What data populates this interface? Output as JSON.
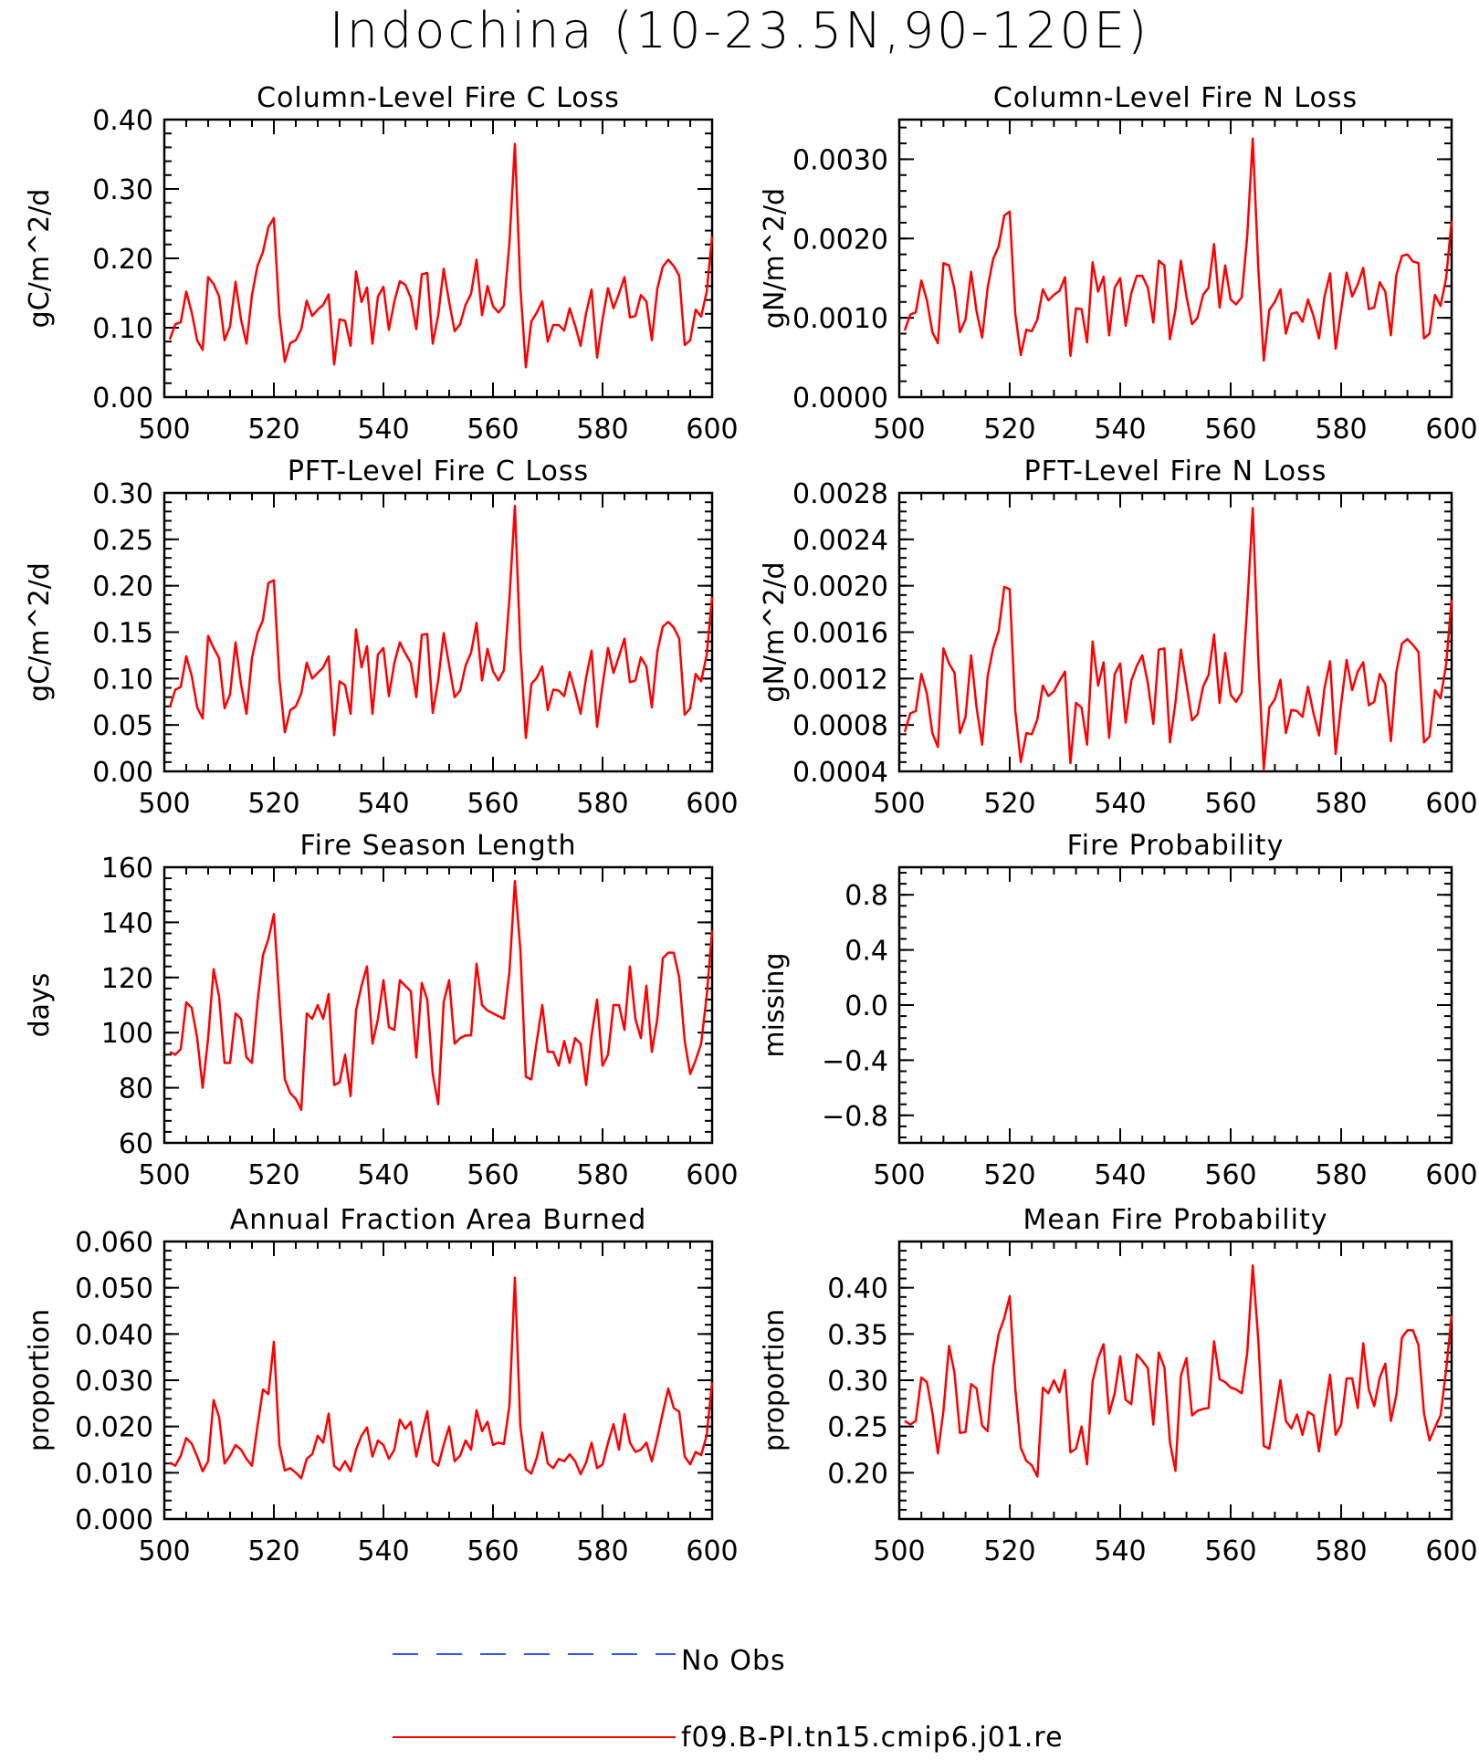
{
  "page": {
    "title": "Indochina (10-23.5N,90-120E)"
  },
  "legend": {
    "items": [
      {
        "label": "No Obs",
        "color": "#3355ff",
        "dash": true
      },
      {
        "label": "f09.B-PI.tn15.cmip6.j01.re",
        "color": "#ff0000",
        "dash": false
      }
    ]
  },
  "chart_data": [
    {
      "type": "line",
      "title": "Column-Level Fire C Loss",
      "ylabel": "gC/m^2/d",
      "xlim": [
        500,
        600
      ],
      "ylim": [
        0,
        0.4
      ],
      "xticks": [
        "500",
        "520",
        "540",
        "560",
        "580",
        "600"
      ],
      "yticks": [
        "0.00",
        "0.10",
        "0.20",
        "0.30",
        "0.40"
      ],
      "series": [
        {
          "name": "f09.B-PI.tn15.cmip6.j01.re",
          "color": "#ff0000",
          "x0": 501,
          "values": [
            0.083,
            0.105,
            0.108,
            0.152,
            0.122,
            0.082,
            0.068,
            0.173,
            0.163,
            0.145,
            0.082,
            0.102,
            0.166,
            0.112,
            0.077,
            0.147,
            0.189,
            0.209,
            0.245,
            0.258,
            0.118,
            0.051,
            0.078,
            0.082,
            0.098,
            0.139,
            0.117,
            0.126,
            0.133,
            0.148,
            0.047,
            0.112,
            0.11,
            0.074,
            0.181,
            0.137,
            0.158,
            0.077,
            0.145,
            0.159,
            0.097,
            0.138,
            0.167,
            0.162,
            0.143,
            0.098,
            0.177,
            0.179,
            0.077,
            0.118,
            0.185,
            0.137,
            0.095,
            0.105,
            0.133,
            0.149,
            0.198,
            0.118,
            0.16,
            0.131,
            0.122,
            0.132,
            0.222,
            0.365,
            0.158,
            0.043,
            0.109,
            0.122,
            0.138,
            0.08,
            0.104,
            0.104,
            0.096,
            0.128,
            0.103,
            0.074,
            0.121,
            0.155,
            0.057,
            0.112,
            0.157,
            0.128,
            0.149,
            0.173,
            0.115,
            0.117,
            0.147,
            0.138,
            0.082,
            0.156,
            0.188,
            0.198,
            0.189,
            0.175,
            0.075,
            0.082,
            0.126,
            0.116,
            0.151,
            0.231
          ]
        }
      ]
    },
    {
      "type": "line",
      "title": "Column-Level Fire N Loss",
      "ylabel": "gN/m^2/d",
      "xlim": [
        500,
        600
      ],
      "ylim": [
        0,
        0.0035
      ],
      "xticks": [
        "500",
        "520",
        "540",
        "560",
        "580",
        "600"
      ],
      "yticks": [
        "0.0000",
        "0.0010",
        "0.0020",
        "0.0030"
      ],
      "series": [
        {
          "name": "f09.B-PI.tn15.cmip6.j01.re",
          "color": "#ff0000",
          "x0": 501,
          "values": [
            0.00084,
            0.00104,
            0.00107,
            0.00147,
            0.00122,
            0.00082,
            0.00068,
            0.00169,
            0.00166,
            0.00136,
            0.00082,
            0.00098,
            0.00158,
            0.00108,
            0.00075,
            0.00138,
            0.00174,
            0.0019,
            0.00229,
            0.00234,
            0.00106,
            0.00053,
            0.00085,
            0.00083,
            0.00098,
            0.00136,
            0.00122,
            0.00129,
            0.00134,
            0.00151,
            0.00052,
            0.00112,
            0.00111,
            0.00069,
            0.0017,
            0.00133,
            0.00152,
            0.00078,
            0.00138,
            0.0015,
            0.0009,
            0.00131,
            0.00153,
            0.00153,
            0.00138,
            0.00094,
            0.00172,
            0.00166,
            0.00073,
            0.0011,
            0.00172,
            0.00127,
            0.00092,
            0.001,
            0.00129,
            0.00138,
            0.00193,
            0.00113,
            0.00166,
            0.00123,
            0.00117,
            0.00126,
            0.00204,
            0.00326,
            0.00162,
            0.00046,
            0.0011,
            0.0012,
            0.00136,
            0.0008,
            0.00105,
            0.00107,
            0.00095,
            0.00123,
            0.00102,
            0.00074,
            0.00127,
            0.00156,
            0.00061,
            0.0011,
            0.00157,
            0.00127,
            0.00142,
            0.00163,
            0.00111,
            0.00113,
            0.00145,
            0.00133,
            0.00078,
            0.00154,
            0.00178,
            0.0018,
            0.00171,
            0.00169,
            0.00074,
            0.0008,
            0.00129,
            0.00115,
            0.0015,
            0.00222
          ]
        }
      ]
    },
    {
      "type": "line",
      "title": "PFT-Level Fire C Loss",
      "ylabel": "gC/m^2/d",
      "xlim": [
        500,
        600
      ],
      "ylim": [
        0,
        0.3
      ],
      "xticks": [
        "500",
        "520",
        "540",
        "560",
        "580",
        "600"
      ],
      "yticks": [
        "0.00",
        "0.05",
        "0.10",
        "0.15",
        "0.20",
        "0.25",
        "0.30"
      ],
      "series": [
        {
          "name": "f09.B-PI.tn15.cmip6.j01.re",
          "color": "#ff0000",
          "x0": 501,
          "values": [
            0.069,
            0.088,
            0.091,
            0.124,
            0.103,
            0.069,
            0.057,
            0.146,
            0.133,
            0.122,
            0.068,
            0.083,
            0.139,
            0.094,
            0.062,
            0.122,
            0.149,
            0.163,
            0.203,
            0.206,
            0.1,
            0.042,
            0.066,
            0.07,
            0.084,
            0.117,
            0.1,
            0.106,
            0.112,
            0.124,
            0.039,
            0.097,
            0.093,
            0.062,
            0.153,
            0.112,
            0.135,
            0.062,
            0.126,
            0.133,
            0.081,
            0.117,
            0.139,
            0.127,
            0.117,
            0.08,
            0.147,
            0.148,
            0.063,
            0.098,
            0.149,
            0.114,
            0.08,
            0.087,
            0.114,
            0.128,
            0.16,
            0.098,
            0.132,
            0.108,
            0.098,
            0.109,
            0.186,
            0.286,
            0.132,
            0.036,
            0.094,
            0.101,
            0.113,
            0.066,
            0.088,
            0.087,
            0.081,
            0.107,
            0.086,
            0.062,
            0.101,
            0.13,
            0.048,
            0.093,
            0.133,
            0.106,
            0.124,
            0.143,
            0.096,
            0.098,
            0.123,
            0.113,
            0.069,
            0.129,
            0.156,
            0.161,
            0.155,
            0.143,
            0.061,
            0.068,
            0.105,
            0.097,
            0.125,
            0.188
          ]
        }
      ]
    },
    {
      "type": "line",
      "title": "PFT-Level Fire N Loss",
      "ylabel": "gN/m^2/d",
      "xlim": [
        500,
        600
      ],
      "ylim": [
        0.0004,
        0.0028
      ],
      "xticks": [
        "500",
        "520",
        "540",
        "560",
        "580",
        "600"
      ],
      "yticks": [
        "0.0004",
        "0.0008",
        "0.0012",
        "0.0016",
        "0.0020",
        "0.0024",
        "0.0028"
      ],
      "series": [
        {
          "name": "f09.B-PI.tn15.cmip6.j01.re",
          "color": "#ff0000",
          "x0": 501,
          "values": [
            0.00074,
            0.0009,
            0.00092,
            0.00124,
            0.00107,
            0.00073,
            0.00061,
            0.00146,
            0.00133,
            0.00125,
            0.00073,
            0.00087,
            0.0014,
            0.00095,
            0.00063,
            0.00122,
            0.00146,
            0.00161,
            0.00199,
            0.00197,
            0.00093,
            0.00048,
            0.00073,
            0.00072,
            0.00085,
            0.00114,
            0.00105,
            0.00109,
            0.00118,
            0.00126,
            0.00047,
            0.00099,
            0.00095,
            0.00063,
            0.00152,
            0.00114,
            0.00134,
            0.00069,
            0.00124,
            0.00133,
            0.00082,
            0.00118,
            0.00131,
            0.0014,
            0.00116,
            0.00081,
            0.00145,
            0.00146,
            0.00065,
            0.00099,
            0.00145,
            0.00115,
            0.00084,
            0.00089,
            0.00113,
            0.00123,
            0.00158,
            0.00099,
            0.00142,
            0.00106,
            0.001,
            0.00108,
            0.00183,
            0.00267,
            0.00136,
            0.00042,
            0.00095,
            0.00102,
            0.00119,
            0.00073,
            0.00093,
            0.00092,
            0.00087,
            0.00113,
            0.0009,
            0.00071,
            0.00112,
            0.00135,
            0.00055,
            0.00098,
            0.00136,
            0.0011,
            0.00126,
            0.00134,
            0.00097,
            0.001,
            0.00124,
            0.00115,
            0.00066,
            0.00126,
            0.0015,
            0.00154,
            0.00149,
            0.00143,
            0.00065,
            0.0007,
            0.0011,
            0.00103,
            0.00132,
            0.00188
          ]
        }
      ]
    },
    {
      "type": "line",
      "title": "Fire Season Length",
      "ylabel": "days",
      "xlim": [
        500,
        600
      ],
      "ylim": [
        60,
        160
      ],
      "xticks": [
        "500",
        "520",
        "540",
        "560",
        "580",
        "600"
      ],
      "yticks": [
        "60",
        "80",
        "100",
        "120",
        "140",
        "160"
      ],
      "series": [
        {
          "name": "f09.B-PI.tn15.cmip6.j01.re",
          "color": "#ff0000",
          "x0": 501,
          "values": [
            93,
            92,
            94,
            111,
            109,
            98,
            80,
            98,
            123,
            113,
            89,
            89,
            107,
            105,
            91,
            89,
            111,
            128,
            134,
            143,
            112,
            83,
            78,
            76,
            72,
            107,
            105,
            110,
            105,
            114,
            81,
            82,
            92,
            77,
            108,
            117,
            124,
            96,
            105,
            119,
            102,
            101,
            119,
            117,
            115,
            91,
            118,
            112,
            85,
            74,
            111,
            119,
            96,
            98,
            99,
            99,
            125,
            110,
            108,
            107,
            106,
            105,
            122,
            155,
            130,
            84,
            83,
            97,
            110,
            93,
            93,
            88,
            97,
            89,
            98,
            96,
            81,
            99,
            112,
            88,
            92,
            110,
            110,
            101,
            124,
            105,
            98,
            117,
            93,
            105,
            127,
            129,
            129,
            120,
            97,
            85,
            90,
            96,
            113,
            137
          ]
        }
      ]
    },
    {
      "type": "line",
      "title": "Fire Probability",
      "ylabel": "missing",
      "xlim": [
        500,
        600
      ],
      "ylim": [
        -1.0,
        1.0
      ],
      "xticks": [
        "500",
        "520",
        "540",
        "560",
        "580",
        "600"
      ],
      "yticks": [
        "-0.8",
        "-0.4",
        "0.0",
        "0.4",
        "0.8"
      ],
      "series": []
    },
    {
      "type": "line",
      "title": "Annual Fraction Area Burned",
      "ylabel": "proportion",
      "xlim": [
        500,
        600
      ],
      "ylim": [
        0,
        0.06
      ],
      "xticks": [
        "500",
        "520",
        "540",
        "560",
        "580",
        "600"
      ],
      "yticks": [
        "0.000",
        "0.010",
        "0.020",
        "0.030",
        "0.040",
        "0.050",
        "0.060"
      ],
      "series": [
        {
          "name": "f09.B-PI.tn15.cmip6.j01.re",
          "color": "#ff0000",
          "x0": 501,
          "values": [
            0.0122,
            0.0115,
            0.0137,
            0.0175,
            0.0163,
            0.0135,
            0.0103,
            0.0125,
            0.0257,
            0.022,
            0.012,
            0.0137,
            0.016,
            0.015,
            0.013,
            0.0115,
            0.02,
            0.028,
            0.027,
            0.0383,
            0.016,
            0.0105,
            0.011,
            0.01,
            0.0088,
            0.013,
            0.014,
            0.018,
            0.0165,
            0.0228,
            0.0115,
            0.0105,
            0.0125,
            0.0103,
            0.015,
            0.018,
            0.0198,
            0.0135,
            0.017,
            0.016,
            0.013,
            0.015,
            0.0215,
            0.0195,
            0.021,
            0.0135,
            0.0185,
            0.0233,
            0.0125,
            0.0115,
            0.016,
            0.02,
            0.0125,
            0.0137,
            0.017,
            0.015,
            0.0235,
            0.019,
            0.021,
            0.016,
            0.0165,
            0.0162,
            0.0245,
            0.0522,
            0.02,
            0.0108,
            0.0098,
            0.0133,
            0.0187,
            0.012,
            0.011,
            0.013,
            0.0125,
            0.014,
            0.0125,
            0.0097,
            0.0122,
            0.0165,
            0.011,
            0.0118,
            0.0165,
            0.0205,
            0.015,
            0.0227,
            0.0165,
            0.0145,
            0.015,
            0.0165,
            0.0125,
            0.0175,
            0.023,
            0.0282,
            0.024,
            0.0232,
            0.0135,
            0.0118,
            0.0145,
            0.0138,
            0.018,
            0.0295
          ]
        }
      ]
    },
    {
      "type": "line",
      "title": "Mean Fire Probability",
      "ylabel": "proportion",
      "xlim": [
        500,
        600
      ],
      "ylim": [
        0.15,
        0.45
      ],
      "xticks": [
        "500",
        "520",
        "540",
        "560",
        "580",
        "600"
      ],
      "yticks": [
        "0.20",
        "0.25",
        "0.30",
        "0.35",
        "0.40"
      ],
      "series": [
        {
          "name": "f09.B-PI.tn15.cmip6.j01.re",
          "color": "#ff0000",
          "x0": 501,
          "values": [
            0.256,
            0.252,
            0.256,
            0.303,
            0.298,
            0.265,
            0.221,
            0.267,
            0.337,
            0.308,
            0.243,
            0.244,
            0.296,
            0.291,
            0.251,
            0.245,
            0.314,
            0.35,
            0.367,
            0.391,
            0.292,
            0.227,
            0.213,
            0.208,
            0.196,
            0.292,
            0.286,
            0.3,
            0.287,
            0.311,
            0.222,
            0.226,
            0.25,
            0.209,
            0.299,
            0.324,
            0.339,
            0.264,
            0.286,
            0.326,
            0.279,
            0.274,
            0.328,
            0.321,
            0.313,
            0.252,
            0.33,
            0.314,
            0.233,
            0.202,
            0.305,
            0.324,
            0.262,
            0.267,
            0.269,
            0.27,
            0.342,
            0.301,
            0.298,
            0.292,
            0.29,
            0.286,
            0.33,
            0.424,
            0.343,
            0.229,
            0.226,
            0.262,
            0.3,
            0.256,
            0.248,
            0.263,
            0.241,
            0.266,
            0.262,
            0.223,
            0.266,
            0.306,
            0.241,
            0.252,
            0.302,
            0.302,
            0.27,
            0.34,
            0.29,
            0.272,
            0.303,
            0.318,
            0.256,
            0.284,
            0.346,
            0.354,
            0.354,
            0.338,
            0.264,
            0.235,
            0.249,
            0.262,
            0.311,
            0.37
          ]
        }
      ]
    }
  ]
}
